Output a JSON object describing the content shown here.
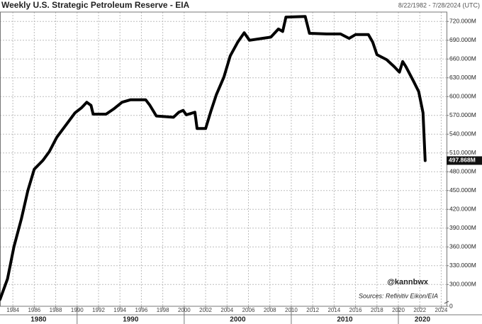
{
  "chart_data": {
    "type": "line",
    "title": "Weekly U.S. Strategic Petroleum Reserve - EIA",
    "subtitle": "8/22/1982 - 7/28/2024 (UTC)",
    "annotations": [
      "@kannbwx",
      "Sources: Refinitiv Eikon/EIA"
    ],
    "x": [
      1982.8,
      1983.5,
      1984.1,
      1984.8,
      1985.4,
      1986.0,
      1986.8,
      1987.4,
      1988.1,
      1989.1,
      1989.8,
      1990.4,
      1990.9,
      1991.3,
      1991.5,
      1992.7,
      1993.4,
      1994.2,
      1995.0,
      1996.4,
      1996.8,
      1997.4,
      1999.0,
      1999.5,
      1999.9,
      2000.2,
      2001.0,
      2001.2,
      2002.0,
      2002.5,
      2003.0,
      2003.7,
      2004.3,
      2005.0,
      2005.6,
      2006.1,
      2007.3,
      2008.1,
      2008.8,
      2009.2,
      2009.5,
      2011.3,
      2011.7,
      2013.3,
      2014.6,
      2015.4,
      2016.0,
      2017.2,
      2017.6,
      2018.0,
      2018.9,
      2019.6,
      2020.1,
      2020.4,
      2020.7,
      2021.4,
      2021.9,
      2022.3,
      2022.5
    ],
    "series": [
      {
        "name": "Weekly U.S. Strategic Petroleum Reserve",
        "color": "#000000",
        "values": [
          276,
          309,
          360,
          405,
          450,
          484,
          498,
          512,
          535,
          558,
          574,
          582,
          591,
          586,
          572,
          572,
          580,
          591,
          595,
          595,
          586,
          569,
          567,
          575,
          578,
          571,
          575,
          549,
          549,
          577,
          603,
          631,
          665,
          687,
          702,
          690,
          693,
          695,
          708,
          704,
          727,
          728,
          701,
          700,
          700,
          693,
          699,
          699,
          687,
          667,
          659,
          648,
          639,
          656,
          648,
          625,
          608,
          574,
          497.868
        ]
      }
    ],
    "last_value_label": "497.868M",
    "xlim": [
      1982.8,
      2024.5
    ],
    "xticks": [
      1984,
      1986,
      1988,
      1990,
      1992,
      1994,
      1996,
      1998,
      2000,
      2002,
      2004,
      2006,
      2008,
      2010,
      2012,
      2014,
      2016,
      2018,
      2020,
      2022,
      2024
    ],
    "decades": [
      1980,
      1990,
      2000,
      2010,
      2020
    ],
    "ylim": [
      0,
      735
    ],
    "axis_break": [
      0,
      272
    ],
    "yticks": [
      {
        "value": 0,
        "label": "0"
      },
      {
        "value": 300,
        "label": "300.000M"
      },
      {
        "value": 330,
        "label": "330.000M"
      },
      {
        "value": 360,
        "label": "360.000M"
      },
      {
        "value": 390,
        "label": "390.000M"
      },
      {
        "value": 420,
        "label": "420.000M"
      },
      {
        "value": 450,
        "label": "450.000M"
      },
      {
        "value": 480,
        "label": "480.000M"
      },
      {
        "value": 510,
        "label": "510.000M"
      },
      {
        "value": 540,
        "label": "540.000M"
      },
      {
        "value": 570,
        "label": "570.000M"
      },
      {
        "value": 600,
        "label": "600.000M"
      },
      {
        "value": 630,
        "label": "630.000M"
      },
      {
        "value": 660,
        "label": "660.000M"
      },
      {
        "value": 690,
        "label": "690.000M"
      },
      {
        "value": 720,
        "label": "720.000M"
      }
    ],
    "y_axis_side": "right",
    "grid": true
  }
}
